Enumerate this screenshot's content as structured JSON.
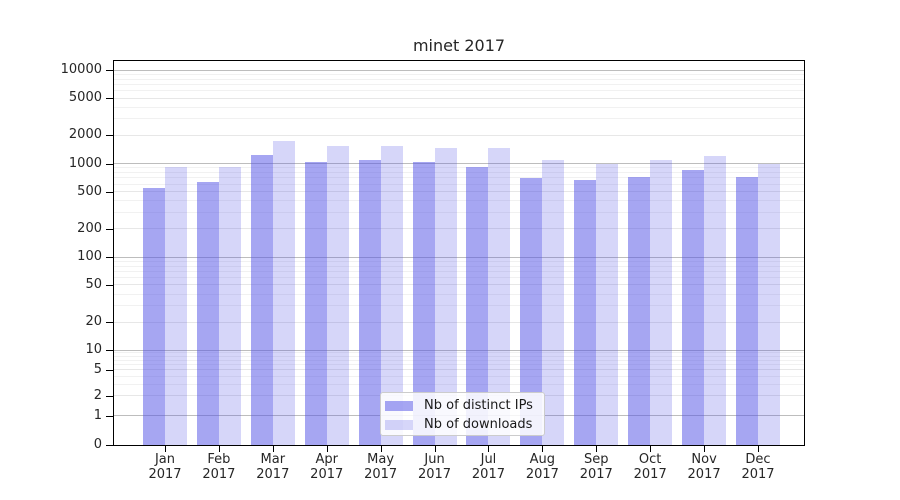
{
  "chart_data": {
    "type": "bar",
    "title": "minet 2017",
    "x_categories": [
      "Jan",
      "Feb",
      "Mar",
      "Apr",
      "May",
      "Jun",
      "Jul",
      "Aug",
      "Sep",
      "Oct",
      "Nov",
      "Dec"
    ],
    "x_category_year": "2017",
    "series": [
      {
        "name": "Nb of distinct IPs",
        "key": "distinct-ips",
        "color": "rgba(85,85,230,0.52)",
        "values": [
          545,
          630,
          1240,
          1030,
          1100,
          1030,
          910,
          700,
          660,
          710,
          860,
          710
        ]
      },
      {
        "name": "Nb of downloads",
        "key": "downloads",
        "color": "rgba(85,85,230,0.24)",
        "values": [
          910,
          910,
          1730,
          1530,
          1530,
          1450,
          1450,
          1090,
          1000,
          1090,
          1190,
          1000
        ]
      }
    ],
    "y_axis": {
      "scale": "symlog",
      "tick_labels": [
        "10000",
        "5000",
        "2000",
        "1000",
        "500",
        "200",
        "100",
        "50",
        "20",
        "10",
        "5",
        "2",
        "1",
        "0"
      ],
      "top_value": 10000,
      "bottom_value": 0
    },
    "x_axis": {
      "tick_count": 12
    },
    "legend": {
      "position": "lower-center",
      "entries": [
        "Nb of distinct IPs",
        "Nb of downloads"
      ]
    },
    "grid": {
      "enabled": true,
      "major_color": "#bdbdbd",
      "minor_color": "#e7e7e7",
      "faint_color": "#f1f1f1"
    }
  }
}
